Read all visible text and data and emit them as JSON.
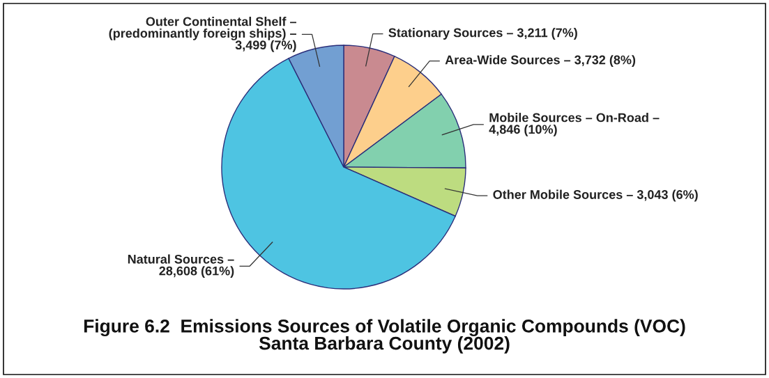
{
  "chart_data": {
    "type": "pie",
    "title": "Figure 6.2  Emissions Sources of Volatile Organic Compounds (VOC)\nSanta Barbara County (2002)",
    "categories": [
      "Stationary Sources –",
      "Area-Wide Sources –",
      "Mobile Sources – On-Road –",
      "Other Mobile Sources –",
      "Natural Sources –",
      "Outer Continental Shelf –\n(predominantly foreign ships) –"
    ],
    "values": [
      3211,
      3732,
      4846,
      3043,
      28608,
      3499
    ],
    "colors": [
      "#c98a90",
      "#fdcf8c",
      "#82d0ae",
      "#bddc80",
      "#4ec4e2",
      "#729fd2"
    ],
    "value_labels": [
      "3,211 (7%)",
      "3,732 (8%)",
      "4,846 (10%)",
      "3,043 (6%)",
      "28,608 (61%)",
      "3,499 (7%)"
    ]
  }
}
